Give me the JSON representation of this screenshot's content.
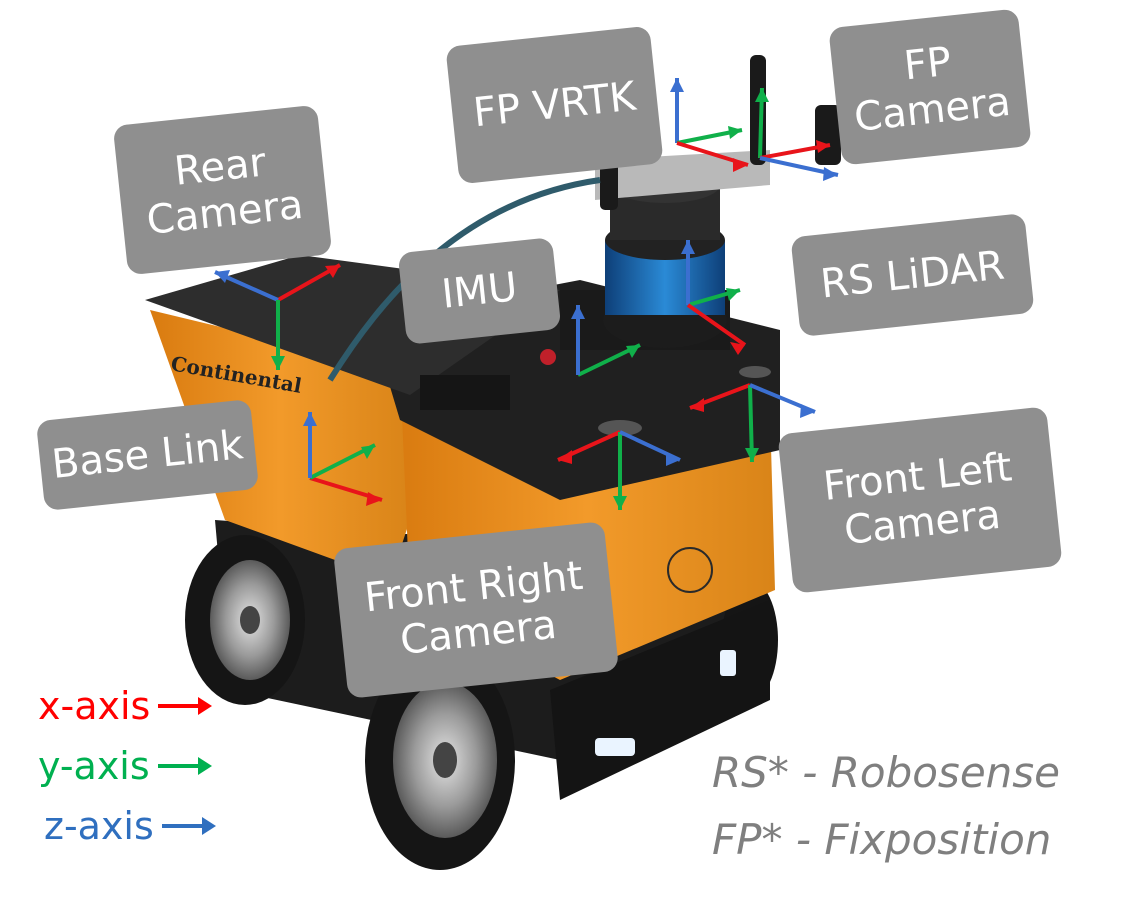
{
  "labels": {
    "fp_vrtk": "FP VRTK",
    "fp_camera": "FP\nCamera",
    "rear_camera": "Rear\nCamera",
    "imu": "IMU",
    "rs_lidar": "RS LiDAR",
    "base_link": "Base Link",
    "front_left_camera": "Front Left\nCamera",
    "front_right_camera": "Front Right\nCamera"
  },
  "legend": {
    "x": {
      "text": "x-axis",
      "color": "#ff0000"
    },
    "y": {
      "text": "y-axis",
      "color": "#00b050"
    },
    "z": {
      "text": "z-axis",
      "color": "#2f6fbf"
    }
  },
  "footnotes": {
    "rs": "RS* - Robosense",
    "fp": "FP* - Fixposition"
  },
  "colors": {
    "label_bg": "#8f8f8f",
    "robot_body": "#e8901e",
    "robot_dark": "#1c1c1c",
    "lidar_blue": "#1f6fb2",
    "x_axis": "#e8141a",
    "y_axis": "#10b04a",
    "z_axis": "#3b6fd0"
  },
  "robot_brand": "Continental"
}
